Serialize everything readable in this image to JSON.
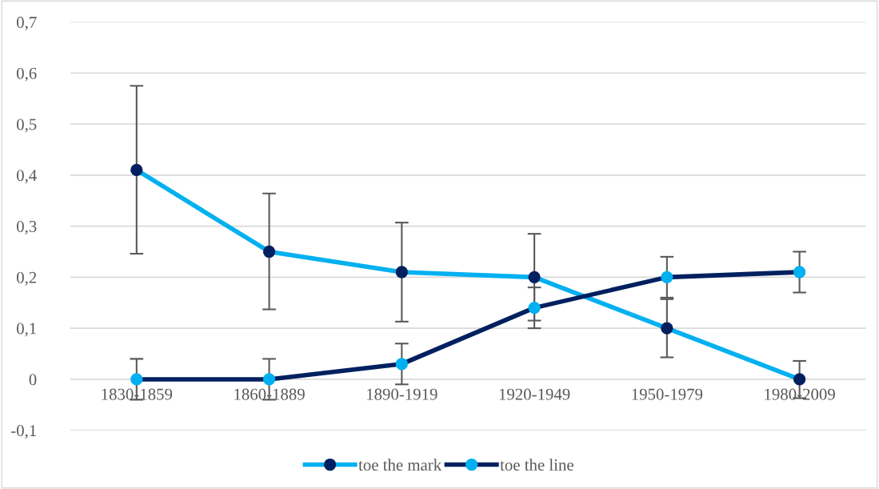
{
  "chart_data": {
    "type": "line",
    "categories": [
      "1830-1859",
      "1860-1889",
      "1890-1919",
      "1920-1949",
      "1950-1979",
      "1980-2009"
    ],
    "series": [
      {
        "name": "toe the mark",
        "color": "#00b0f0",
        "colors": [
          "#002060",
          "#002060",
          "#002060",
          "#002060",
          "#002060",
          "#002060"
        ],
        "values": [
          0.41,
          0.25,
          0.21,
          0.2,
          0.1,
          0
        ],
        "errors": [
          [
            0.246,
            0.575
          ],
          [
            0.137,
            0.364
          ],
          [
            0.113,
            0.307
          ],
          [
            0.115,
            0.285
          ],
          [
            0.043,
            0.157
          ],
          [
            -0.037,
            0.036
          ]
        ]
      },
      {
        "name": "toe the line",
        "color": "#002060",
        "colors": [
          "#00b0f0",
          "#00b0f0",
          "#00b0f0",
          "#00b0f0",
          "#00b0f0",
          "#00b0f0"
        ],
        "values": [
          0,
          0,
          0.03,
          0.14,
          0.2,
          0.21
        ],
        "errors": [
          [
            -0.04,
            0.04
          ],
          [
            -0.04,
            0.04
          ],
          [
            -0.01,
            0.07
          ],
          [
            0.1,
            0.18
          ],
          [
            0.16,
            0.24
          ],
          [
            0.17,
            0.25
          ]
        ]
      }
    ],
    "ylim": [
      -0.1,
      0.7
    ],
    "yticks": [
      {
        "value": -0.1,
        "label": "-0,1"
      },
      0,
      {
        "value": 0.1,
        "label": "0,1"
      },
      {
        "value": 0.2,
        "label": "0,2"
      },
      {
        "value": 0.3,
        "label": "0,3"
      },
      {
        "value": 0.4,
        "label": "0,4"
      },
      {
        "value": 0.5,
        "label": "0,5"
      },
      {
        "value": 0.6,
        "label": "0,6"
      },
      {
        "value": 0.7,
        "label": "0,7"
      }
    ],
    "grid": "y",
    "legend": "bottom",
    "marker": "circle",
    "line_style": "solid"
  }
}
